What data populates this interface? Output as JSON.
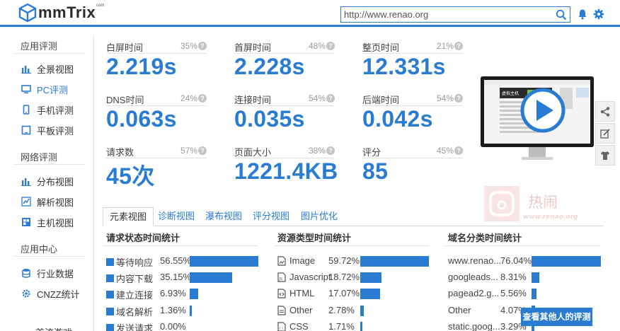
{
  "header": {
    "logo_text": "mmTrix",
    "logo_sup": "com",
    "search_value": "http://www.renao.org"
  },
  "sidebar": {
    "sections": [
      {
        "title": "应用评测",
        "items": [
          {
            "label": "全景视图",
            "icon": "bar-chart-icon"
          },
          {
            "label": "PC评测",
            "icon": "monitor-icon",
            "active": true
          },
          {
            "label": "手机评测",
            "icon": "phone-icon"
          },
          {
            "label": "平板评测",
            "icon": "tablet-icon"
          }
        ]
      },
      {
        "title": "网络评测",
        "items": [
          {
            "label": "分布视图",
            "icon": "bar-chart-icon"
          },
          {
            "label": "解析视图",
            "icon": "line-chart-icon"
          },
          {
            "label": "主机视图",
            "icon": "grid-icon"
          }
        ]
      },
      {
        "title": "应用中心",
        "items": [
          {
            "label": "行业数据",
            "icon": "database-icon"
          },
          {
            "label": "CNZZ统计",
            "icon": "gear-icon"
          }
        ]
      }
    ],
    "cut_item": "首流游戏"
  },
  "metrics": [
    {
      "label": "白屏时间",
      "pct": "35%",
      "value": "2.219s"
    },
    {
      "label": "首屏时间",
      "pct": "48%",
      "value": "2.228s"
    },
    {
      "label": "整页时间",
      "pct": "21%",
      "value": "12.331s"
    },
    {
      "label": "DNS时间",
      "pct": "24%",
      "value": "0.063s"
    },
    {
      "label": "连接时间",
      "pct": "54%",
      "value": "0.035s"
    },
    {
      "label": "后端时间",
      "pct": "54%",
      "value": "0.042s"
    },
    {
      "label": "请求数",
      "pct": "57%",
      "value": "45次"
    },
    {
      "label": "页面大小",
      "pct": "38%",
      "value": "1221.4KB"
    },
    {
      "label": "评分",
      "pct": "45%",
      "value": "85"
    }
  ],
  "monitor": {
    "screen_caption": "虚拟主机"
  },
  "watermark": {
    "text": "热闹",
    "url": "www.renao.org"
  },
  "tabs": [
    {
      "label": "元素视图",
      "active": true
    },
    {
      "label": "诊断视图"
    },
    {
      "label": "瀑布视图"
    },
    {
      "label": "评分视图"
    },
    {
      "label": "图片优化"
    }
  ],
  "panels": [
    {
      "title": "请求状态时间统计",
      "rows": [
        {
          "label": "等待响应",
          "pct": "56.55%",
          "value": 56.55
        },
        {
          "label": "内容下载",
          "pct": "35.15%",
          "value": 35.15
        },
        {
          "label": "建立连接",
          "pct": "6.93%",
          "value": 6.93
        },
        {
          "label": "域名解析",
          "pct": "1.36%",
          "value": 1.36
        },
        {
          "label": "发送请求",
          "pct": "0.00%",
          "value": 0.0
        }
      ]
    },
    {
      "title": "资源类型时间统计",
      "rows": [
        {
          "label": "Image",
          "pct": "59.72%",
          "value": 59.72,
          "icon": "image-file-icon"
        },
        {
          "label": "Javascript",
          "pct": "18.72%",
          "value": 18.72,
          "icon": "js-file-icon"
        },
        {
          "label": "HTML",
          "pct": "17.07%",
          "value": 17.07,
          "icon": "html-file-icon"
        },
        {
          "label": "Other",
          "pct": "2.78%",
          "value": 2.78,
          "icon": "file-icon"
        },
        {
          "label": "CSS",
          "pct": "1.71%",
          "value": 1.71,
          "icon": "css-file-icon"
        }
      ]
    },
    {
      "title": "域名分类时间统计",
      "rows": [
        {
          "label": "www.renao...",
          "pct": "76.04%",
          "value": 76.04
        },
        {
          "label": "googleads...",
          "pct": "8.31%",
          "value": 8.31
        },
        {
          "label": "pagead2.g...",
          "pct": "5.56%",
          "value": 5.56
        },
        {
          "label": "Other",
          "pct": "4.07%",
          "value": 4.07
        },
        {
          "label": "static.goog...",
          "pct": "3.29%",
          "value": 3.29
        }
      ]
    }
  ],
  "cta_label": "查看其他人的评测",
  "colors": {
    "accent": "#2a7bd2",
    "text": "#333333",
    "muted": "#999999"
  }
}
